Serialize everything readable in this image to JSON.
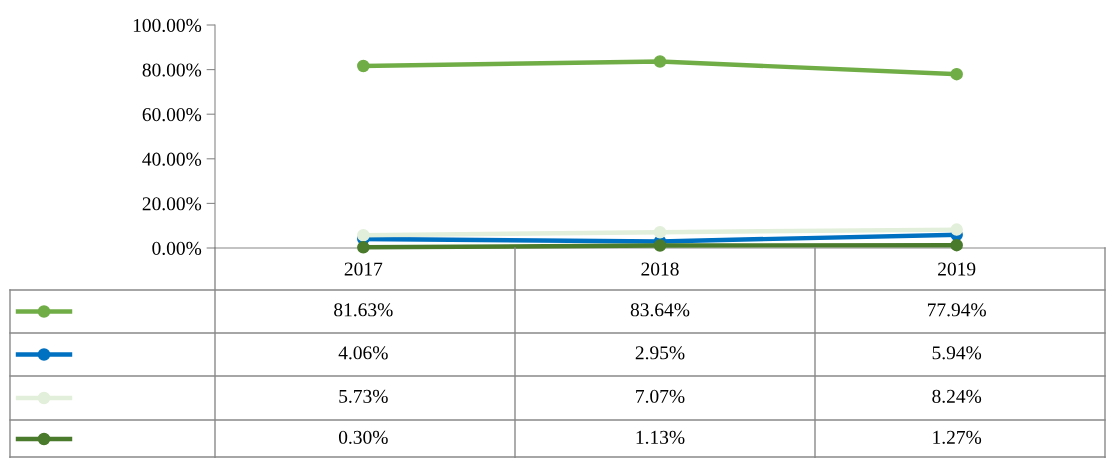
{
  "chart_data": {
    "type": "line",
    "categories": [
      "2017",
      "2018",
      "2019"
    ],
    "ylim": [
      0,
      100
    ],
    "yticks": [
      {
        "value": 0,
        "label": "0.00%"
      },
      {
        "value": 20,
        "label": "20.00%"
      },
      {
        "value": 40,
        "label": "40.00%"
      },
      {
        "value": 60,
        "label": "60.00%"
      },
      {
        "value": 80,
        "label": "80.00%"
      },
      {
        "value": 100,
        "label": "100.00%"
      }
    ],
    "grid": false,
    "marker": "circle",
    "line_style": "solid",
    "series": [
      {
        "color": "#70ad47",
        "values": [
          81.63,
          83.64,
          77.94
        ],
        "value_labels": [
          "81.63%",
          "83.64%",
          "77.94%"
        ]
      },
      {
        "color": "#0070c0",
        "values": [
          4.06,
          2.95,
          5.94
        ],
        "value_labels": [
          "4.06%",
          "2.95%",
          "5.94%"
        ]
      },
      {
        "color": "#e2efda",
        "values": [
          5.73,
          7.07,
          8.24
        ],
        "value_labels": [
          "5.73%",
          "7.07%",
          "8.24%"
        ]
      },
      {
        "color": "#4a7a2c",
        "values": [
          0.3,
          1.13,
          1.27
        ],
        "value_labels": [
          "0.30%",
          "1.13%",
          "1.27%"
        ]
      }
    ]
  }
}
